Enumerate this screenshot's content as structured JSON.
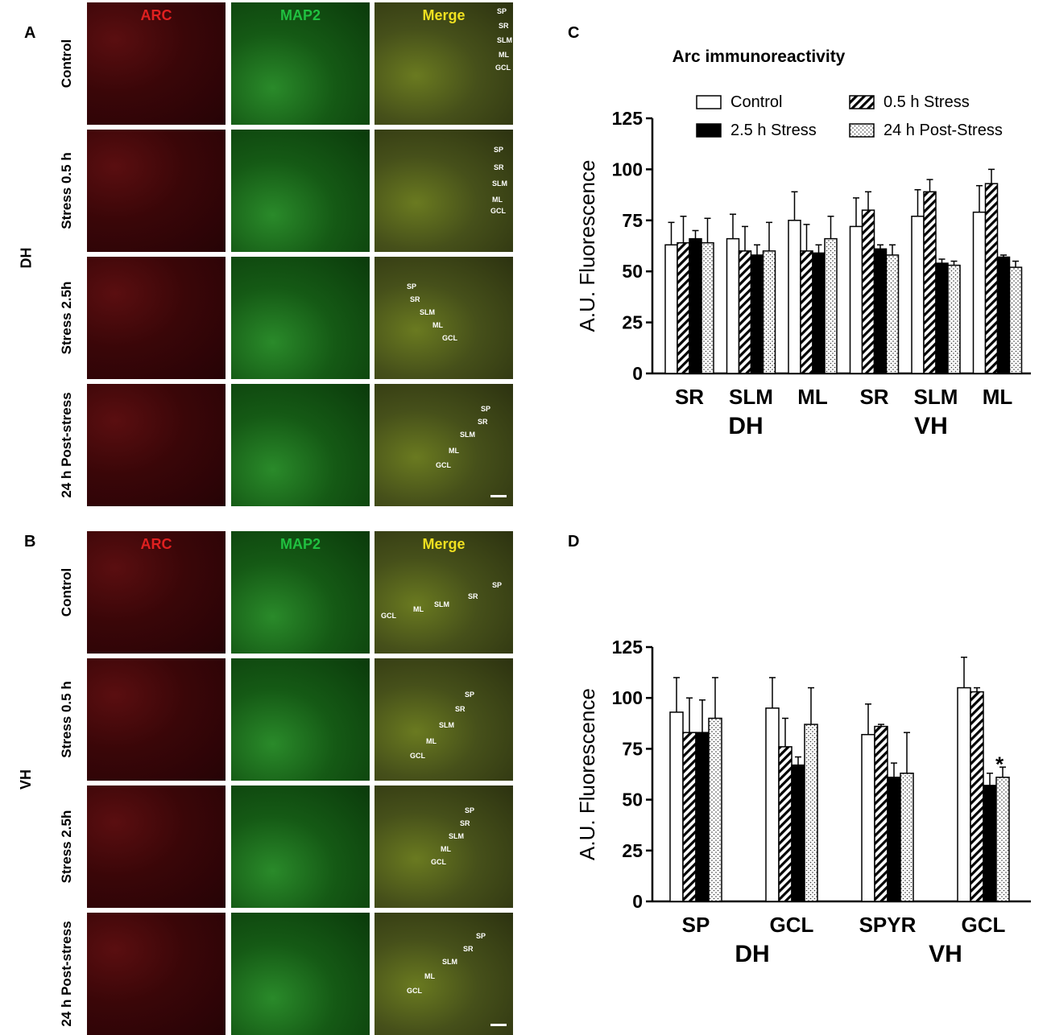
{
  "panels": {
    "A": "A",
    "B": "B",
    "C": "C",
    "D": "D"
  },
  "micrograph": {
    "columns": [
      "ARC",
      "MAP2",
      "Merge"
    ],
    "column_colors": {
      "ARC": "#e02020",
      "MAP2": "#20c040",
      "Merge": "#f0e020"
    },
    "dh_label": "DH",
    "vh_label": "VH",
    "rows": [
      "Control",
      "Stress  0.5 h",
      "Stress  2.5h",
      "24 h Post-stress"
    ],
    "dh_layers": [
      [
        "SP",
        "SR",
        "SLM",
        "ML",
        "GCL"
      ],
      [
        "SP",
        "SR",
        "SLM",
        "ML",
        "GCL"
      ],
      [
        "SP",
        "SR",
        "SLM",
        "ML",
        "GCL"
      ],
      [
        "SP",
        "SR",
        "SLM",
        "ML",
        "GCL"
      ]
    ],
    "vh_layers": [
      [
        "SP",
        "SR",
        "SLM",
        "ML",
        "GCL"
      ],
      [
        "SP",
        "SR",
        "SLM",
        "ML",
        "GCL"
      ],
      [
        "SP",
        "SR",
        "SLM",
        "ML",
        "GCL"
      ],
      [
        "SP",
        "SR",
        "SLM",
        "ML",
        "GCL"
      ]
    ]
  },
  "chart_data": [
    {
      "type": "bar",
      "panel": "C",
      "title": "Arc immunoreactivity",
      "ylabel": "A.U. Fluorescence",
      "ylim": [
        0,
        125
      ],
      "yticks": [
        "0",
        "25",
        "50",
        "75",
        "100",
        "125"
      ],
      "categories": [
        "SR",
        "SLM",
        "ML",
        "SR",
        "SLM",
        "ML"
      ],
      "groups": [
        "DH",
        "VH"
      ],
      "legend": [
        "Control",
        "0.5 h Stress",
        "2.5 h Stress",
        "24 h Post-Stress"
      ],
      "series": [
        {
          "name": "Control",
          "values": [
            63,
            66,
            75,
            72,
            77,
            79
          ],
          "errors": [
            11,
            12,
            14,
            14,
            13,
            13
          ]
        },
        {
          "name": "0.5 h Stress",
          "values": [
            64,
            60,
            60,
            80,
            89,
            93
          ],
          "errors": [
            13,
            12,
            13,
            9,
            6,
            7
          ]
        },
        {
          "name": "2.5 h Stress",
          "values": [
            66,
            58,
            59,
            61,
            54,
            57
          ],
          "errors": [
            4,
            5,
            4,
            2,
            2,
            1
          ]
        },
        {
          "name": "24 h Post-Stress",
          "values": [
            64,
            60,
            66,
            58,
            53,
            52
          ],
          "errors": [
            12,
            14,
            11,
            5,
            2,
            3
          ]
        }
      ]
    },
    {
      "type": "bar",
      "panel": "D",
      "title": "",
      "ylabel": "A.U. Fluorescence",
      "ylim": [
        0,
        125
      ],
      "yticks": [
        "0",
        "25",
        "50",
        "75",
        "100",
        "125"
      ],
      "categories": [
        "SP",
        "GCL",
        "SPYR",
        "GCL"
      ],
      "groups": [
        "DH",
        "VH"
      ],
      "annotation": "*",
      "series": [
        {
          "name": "Control",
          "values": [
            93,
            95,
            82,
            105
          ],
          "errors": [
            17,
            15,
            15,
            15
          ]
        },
        {
          "name": "0.5 h Stress",
          "values": [
            83,
            76,
            86,
            103
          ],
          "errors": [
            17,
            14,
            1,
            2
          ]
        },
        {
          "name": "2.5 h Stress",
          "values": [
            83,
            67,
            61,
            57
          ],
          "errors": [
            16,
            4,
            7,
            6
          ]
        },
        {
          "name": "24 h Post-Stress",
          "values": [
            90,
            87,
            63,
            61
          ],
          "errors": [
            20,
            18,
            20,
            5
          ]
        }
      ]
    }
  ]
}
